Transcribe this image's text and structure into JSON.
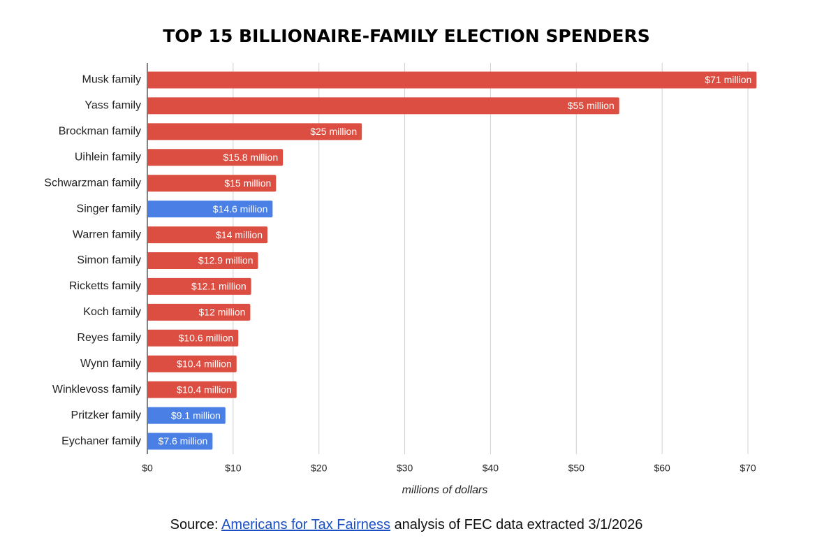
{
  "chart_data": {
    "type": "bar",
    "title": "TOP 15 BILLIONAIRE-FAMILY ELECTION SPENDERS",
    "categories": [
      "Musk family",
      "Yass family",
      "Brockman family",
      "Uihlein family",
      "Schwarzman family",
      "Singer family",
      "Warren family",
      "Simon family",
      "Ricketts family",
      "Koch family",
      "Reyes family",
      "Wynn family",
      "Winklevoss family",
      "Pritzker family",
      "Eychaner family"
    ],
    "values": [
      71,
      55,
      25,
      15.8,
      15,
      14.6,
      14,
      12.9,
      12.1,
      12,
      10.6,
      10.4,
      10.4,
      9.1,
      7.6
    ],
    "value_labels": [
      "$71 million",
      "$55 million",
      "$25 million",
      "$15.8 million",
      "$15 million",
      "$14.6 million",
      "$14 million",
      "$12.9 million",
      "$12.1 million",
      "$12 million",
      "$10.6 million",
      "$10.4 million",
      "$10.4 million",
      "$9.1 million",
      "$7.6 million"
    ],
    "colors": [
      "#dc4e41",
      "#dc4e41",
      "#dc4e41",
      "#dc4e41",
      "#dc4e41",
      "#4a7fe6",
      "#dc4e41",
      "#dc4e41",
      "#dc4e41",
      "#dc4e41",
      "#dc4e41",
      "#dc4e41",
      "#dc4e41",
      "#4a7fe6",
      "#4a7fe6"
    ],
    "x_label": "millions of dollars",
    "xlim": [
      0,
      70
    ],
    "xticks": [
      {
        "value": 0,
        "label": "$0"
      },
      {
        "value": 10,
        "label": "$10"
      },
      {
        "value": 20,
        "label": "$20"
      },
      {
        "value": 30,
        "label": "$30"
      },
      {
        "value": 40,
        "label": "$40"
      },
      {
        "value": 50,
        "label": "$50"
      },
      {
        "value": 60,
        "label": "$60"
      },
      {
        "value": 70,
        "label": "$70"
      }
    ],
    "grid": true,
    "source": {
      "prefix": "Source:",
      "link": "Americans for Tax Fairness",
      "suffix": "analysis of FEC data extracted 3/1/2026"
    }
  }
}
